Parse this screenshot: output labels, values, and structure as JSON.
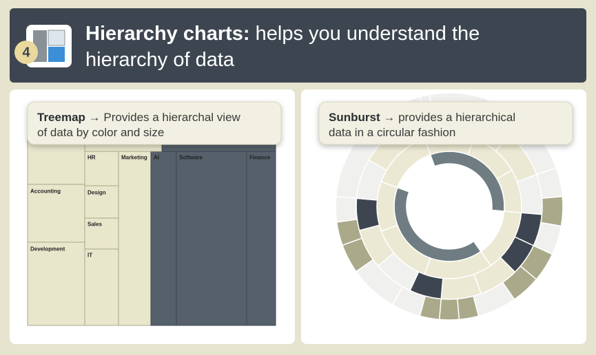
{
  "header": {
    "badge": "4",
    "title_bold": "Hierarchy charts:",
    "title_rest": " helps you understand the",
    "title_line2": "hierarchy of data"
  },
  "treemap": {
    "name": "Treemap",
    "description": "→ Provides a hierarchal view",
    "description_line2": "of data by color and size",
    "labels": [
      "HR",
      "Marketing",
      "AI",
      "Software",
      "Finance",
      "Accounting",
      "Design",
      "Sales",
      "Development",
      "IT"
    ]
  },
  "sunburst": {
    "name": "Sunburst",
    "description": "→ provides a hierarchical",
    "description_line2": "data in a circular fashion"
  }
}
